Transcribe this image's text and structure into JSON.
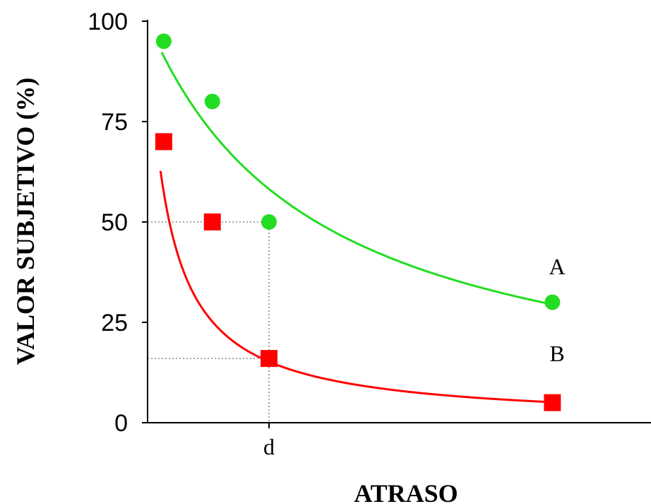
{
  "chart_data": {
    "type": "scatter",
    "ylabel": "VALOR SUBJETIVO (%)",
    "xlabel": "ATRASO",
    "ylim": [
      0,
      100
    ],
    "xlim": [
      0,
      12
    ],
    "yticks": [
      "0",
      "25",
      "50",
      "75",
      "100"
    ],
    "x_tick_label": "d",
    "x_tick_value": 3,
    "grid": false,
    "series": [
      {
        "name": "A",
        "color": "#22dd22",
        "marker": "circle",
        "x": [
          0.4,
          1.6,
          3.0,
          10.0
        ],
        "y": [
          95,
          80,
          50,
          30
        ]
      },
      {
        "name": "B",
        "color": "#ff0000",
        "marker": "square",
        "x": [
          0.4,
          1.6,
          3.0,
          10.0
        ],
        "y": [
          70,
          50,
          16,
          5
        ]
      }
    ],
    "reference_lines": [
      {
        "x": 3.0,
        "y": 50
      },
      {
        "x": 3.0,
        "y": 16
      }
    ]
  }
}
